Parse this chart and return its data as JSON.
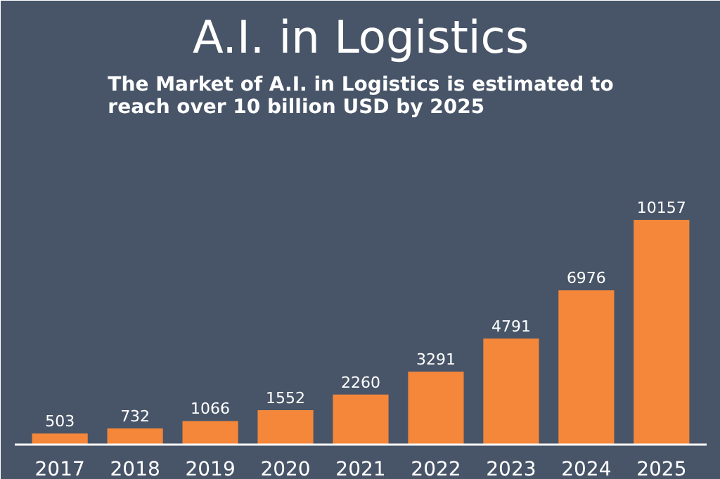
{
  "chart_data": {
    "type": "bar",
    "title": "A.I. in Logistics",
    "subtitle": "The Market of A.I. in Logistics is estimated to\nreach over 10 billion USD by 2025",
    "categories": [
      "2017",
      "2018",
      "2019",
      "2020",
      "2021",
      "2022",
      "2023",
      "2024",
      "2025"
    ],
    "values": [
      503,
      732,
      1066,
      1552,
      2260,
      3291,
      4791,
      6976,
      10157
    ],
    "color": "#f5873a",
    "data_labels": true,
    "grid": false
  }
}
